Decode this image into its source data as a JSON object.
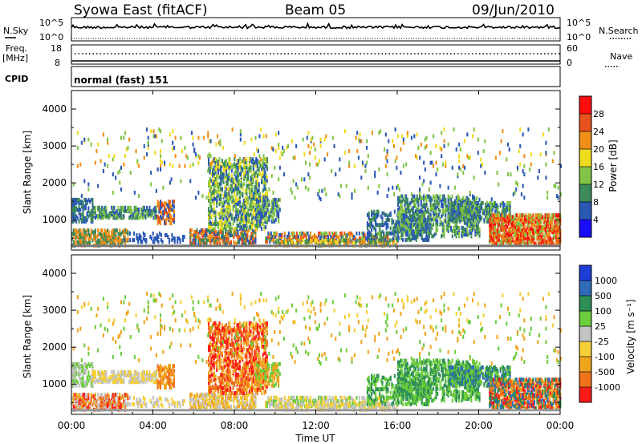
{
  "header": {
    "station": "Syowa East (fitACF)",
    "beam": "Beam 05",
    "date": "09/Jun/2010"
  },
  "panels": {
    "nsky": {
      "left_label": "N.Sky",
      "left_ticks": [
        "10^5",
        "10^0"
      ],
      "right_ticks": [
        "10^5",
        "10^0"
      ],
      "right_label": "N.Search"
    },
    "freq": {
      "left_label_1": "Freq.",
      "left_label_2": "[MHz]",
      "left_ticks": [
        "18",
        "8"
      ],
      "right_ticks": [
        "60",
        "0"
      ],
      "right_label": "Nave"
    },
    "cpid": {
      "left_label": "CPID",
      "mode": "normal (fast) 151"
    }
  },
  "colors": {
    "power_scale": [
      "#1a0dff",
      "#2a58b5",
      "#3d8a5a",
      "#82c447",
      "#f0dc1f",
      "#f08f18",
      "#e8521c",
      "#ff0d0d"
    ],
    "velocity_scale": [
      "#ff1a1a",
      "#f0731c",
      "#f0a51c",
      "#f5cf36",
      "#c3c3c3",
      "#6ccc3c",
      "#2d8f55",
      "#2e6cb8",
      "#1e3cd6"
    ]
  },
  "chart_data": [
    {
      "type": "heatmap",
      "title": "Power",
      "ylabel": "Slant Range [km]",
      "ylim": [
        180,
        4500
      ],
      "yticks": [
        "1000",
        "2000",
        "3000",
        "4000"
      ],
      "colorbar_label": "Power [dB]",
      "colorbar_ticks": [
        "4",
        "8",
        "12",
        "16",
        "20",
        "24",
        "28"
      ],
      "crange": [
        0,
        32
      ]
    },
    {
      "type": "heatmap",
      "title": "Velocity",
      "ylabel": "Slant Range [km]",
      "ylim": [
        180,
        4500
      ],
      "yticks": [
        "1000",
        "2000",
        "3000",
        "4000"
      ],
      "colorbar_label": "Velocity [m s⁻¹]",
      "colorbar_ticks": [
        "1000",
        "500",
        "100",
        "25",
        "-25",
        "-100",
        "-500",
        "-1000"
      ]
    }
  ],
  "xaxis": {
    "label": "Time UT",
    "ticks": [
      "00:00",
      "04:00",
      "08:00",
      "12:00",
      "16:00",
      "20:00",
      "00:00"
    ]
  }
}
